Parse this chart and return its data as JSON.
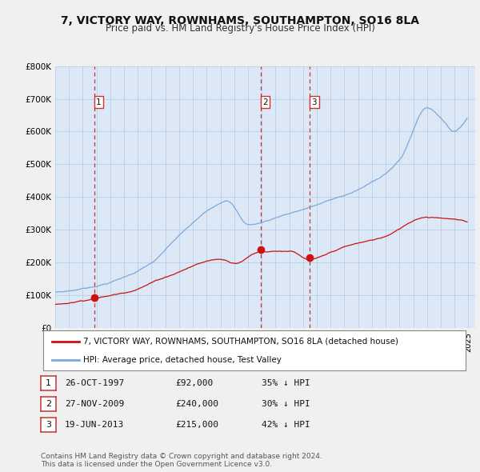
{
  "title": "7, VICTORY WAY, ROWNHAMS, SOUTHAMPTON, SO16 8LA",
  "subtitle": "Price paid vs. HM Land Registry's House Price Index (HPI)",
  "ylim": [
    0,
    800000
  ],
  "yticks": [
    0,
    100000,
    200000,
    300000,
    400000,
    500000,
    600000,
    700000,
    800000
  ],
  "ytick_labels": [
    "£0",
    "£100K",
    "£200K",
    "£300K",
    "£400K",
    "£500K",
    "£600K",
    "£700K",
    "£800K"
  ],
  "xlim_start": 1995.0,
  "xlim_end": 2025.5,
  "hpi_color": "#7aaadd",
  "price_color": "#cc1111",
  "vline_color": "#cc3333",
  "plot_bg_color": "#dce8f5",
  "background_color": "#f0f0f0",
  "grid_color": "#b8cfe8",
  "sale_dates": [
    1997.82,
    2009.91,
    2013.47
  ],
  "sale_prices": [
    92000,
    240000,
    215000
  ],
  "sale_labels": [
    "1",
    "2",
    "3"
  ],
  "legend_label_red": "7, VICTORY WAY, ROWNHAMS, SOUTHAMPTON, SO16 8LA (detached house)",
  "legend_label_blue": "HPI: Average price, detached house, Test Valley",
  "table_data": [
    [
      "1",
      "26-OCT-1997",
      "£92,000",
      "35% ↓ HPI"
    ],
    [
      "2",
      "27-NOV-2009",
      "£240,000",
      "30% ↓ HPI"
    ],
    [
      "3",
      "19-JUN-2013",
      "£215,000",
      "42% ↓ HPI"
    ]
  ],
  "footnote": "Contains HM Land Registry data © Crown copyright and database right 2024.\nThis data is licensed under the Open Government Licence v3.0.",
  "title_fontsize": 10,
  "subtitle_fontsize": 8.5,
  "tick_fontsize": 7.5,
  "legend_fontsize": 7.5,
  "table_fontsize": 8,
  "footnote_fontsize": 6.5
}
